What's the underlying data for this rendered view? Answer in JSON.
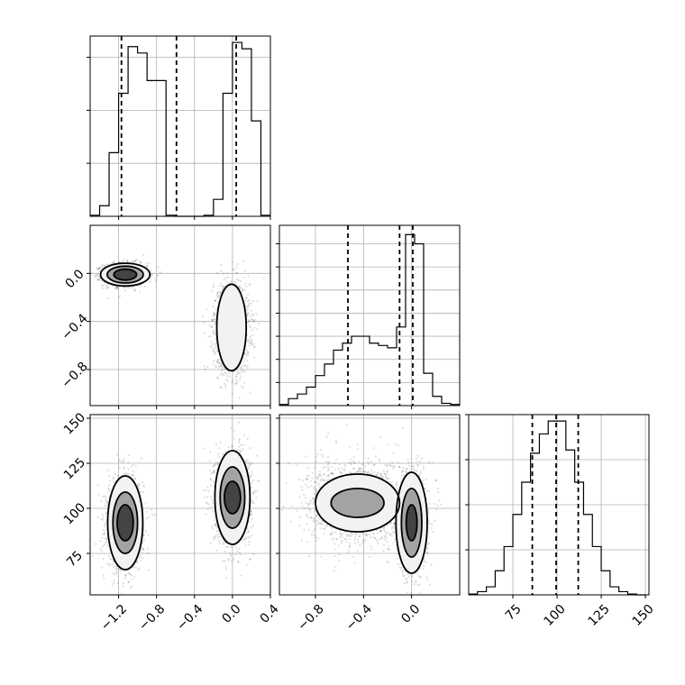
{
  "chart_data": {
    "type": "corner",
    "panels": [
      {
        "id": "hist_p1",
        "type": "histogram",
        "xlim": [
          -1.5,
          0.4
        ],
        "bin_edges": [
          -1.5,
          -1.4,
          -1.3,
          -1.2,
          -1.1,
          -1.0,
          -0.9,
          -0.8,
          -0.7,
          -0.6,
          -0.5,
          -0.4,
          -0.3,
          -0.2,
          -0.1,
          0.0,
          0.1,
          0.2,
          0.3,
          0.4
        ],
        "counts": [
          0.5,
          5,
          30,
          58,
          80,
          77,
          64,
          64,
          0.5,
          0,
          0,
          0,
          0.5,
          8,
          58,
          82,
          79,
          45,
          0.5
        ],
        "ymax": 85,
        "yticks": [
          25,
          50,
          75
        ],
        "quantiles": [
          -1.17,
          -0.59,
          0.04
        ]
      },
      {
        "id": "scatter_p1_p2",
        "type": "2d-hist",
        "xlim": [
          -1.5,
          0.4
        ],
        "ylim": [
          -1.1,
          0.4
        ],
        "yticks": [
          0.0,
          -0.4,
          -0.8
        ],
        "ytick_labels": [
          "0.0",
          "−0.4",
          "−0.8"
        ],
        "clusters": [
          {
            "cx": -1.13,
            "cy": -0.01,
            "sx": 0.11,
            "sy": 0.045,
            "n": 1400
          },
          {
            "cx": -0.01,
            "cy": -0.45,
            "sx": 0.09,
            "sy": 0.18,
            "n": 1400
          }
        ],
        "contours": [
          {
            "cx": -1.13,
            "cy": -0.01,
            "levels": [
              [
                0.26,
                0.095
              ],
              [
                0.19,
                0.07
              ],
              [
                0.12,
                0.045
              ]
            ]
          },
          {
            "cx": -0.01,
            "cy": -0.45,
            "levels": [
              [
                0.155,
                0.36
              ]
            ]
          }
        ]
      },
      {
        "id": "hist_p2",
        "type": "histogram",
        "xlim": [
          -1.1,
          0.4
        ],
        "bin_edges": [
          -1.1,
          -1.025,
          -0.95,
          -0.875,
          -0.8,
          -0.725,
          -0.65,
          -0.575,
          -0.5,
          -0.425,
          -0.35,
          -0.275,
          -0.2,
          -0.125,
          -0.05,
          0.025,
          0.1,
          0.175,
          0.25,
          0.325,
          0.4
        ],
        "counts": [
          0.5,
          3,
          5,
          8,
          13,
          18,
          24,
          27,
          30,
          30,
          27,
          26,
          25,
          34,
          74,
          70,
          14,
          4,
          1,
          0.5
        ],
        "ymax": 78,
        "yticks": [
          10,
          20,
          30,
          40,
          50,
          60,
          70
        ],
        "quantiles": [
          -0.53,
          -0.1,
          0.01
        ]
      },
      {
        "id": "scatter_p1_p3",
        "type": "2d-hist",
        "xlim": [
          -1.5,
          0.4
        ],
        "ylim": [
          52,
          152
        ],
        "yticks": [
          75,
          100,
          125,
          150
        ],
        "ytick_labels": [
          "75",
          "100",
          "125",
          "150"
        ],
        "xticks": [
          -1.2,
          -0.8,
          -0.4,
          0.0,
          0.4
        ],
        "xtick_labels": [
          "−1.2",
          "−0.8",
          "−0.4",
          "0.0",
          "0.4"
        ],
        "clusters": [
          {
            "cx": -1.13,
            "cy": 92,
            "sx": 0.09,
            "sy": 12,
            "n": 1400
          },
          {
            "cx": 0.0,
            "cy": 106,
            "sx": 0.09,
            "sy": 12,
            "n": 1400
          }
        ],
        "contours": [
          {
            "cx": -1.13,
            "cy": 92,
            "levels": [
              [
                0.185,
                26
              ],
              [
                0.13,
                17
              ],
              [
                0.085,
                10
              ]
            ]
          },
          {
            "cx": 0.0,
            "cy": 106,
            "levels": [
              [
                0.185,
                26
              ],
              [
                0.13,
                17
              ],
              [
                0.085,
                9
              ]
            ]
          }
        ]
      },
      {
        "id": "scatter_p2_p3",
        "type": "2d-hist",
        "xlim": [
          -1.1,
          0.4
        ],
        "ylim": [
          52,
          152
        ],
        "xticks": [
          -0.8,
          -0.4,
          0.0
        ],
        "xtick_labels": [
          "−0.8",
          "−0.4",
          "0.0"
        ],
        "clusters": [
          {
            "cx": -0.45,
            "cy": 103,
            "sx": 0.2,
            "sy": 11,
            "n": 1500
          },
          {
            "cx": 0.0,
            "cy": 92,
            "sx": 0.06,
            "sy": 13,
            "n": 1300
          }
        ],
        "contours": [
          {
            "cx": -0.45,
            "cy": 103,
            "levels": [
              [
                0.35,
                16
              ],
              [
                0.22,
                8
              ]
            ]
          },
          {
            "cx": 0.0,
            "cy": 92,
            "levels": [
              [
                0.13,
                28
              ],
              [
                0.085,
                19
              ],
              [
                0.045,
                10
              ]
            ]
          }
        ]
      },
      {
        "id": "hist_p3",
        "type": "histogram",
        "xlim": [
          50,
          152
        ],
        "bin_edges": [
          50,
          55,
          60,
          65,
          70,
          75,
          80,
          85,
          90,
          95,
          100,
          105,
          110,
          115,
          120,
          125,
          130,
          135,
          140,
          145,
          150
        ],
        "counts": [
          0.5,
          2,
          5,
          15,
          30,
          50,
          70,
          88,
          100,
          108,
          108,
          90,
          70,
          50,
          30,
          15,
          5,
          2,
          0.5,
          0
        ],
        "ymax": 112,
        "yticks": [
          100,
          200,
          300
        ],
        "hidden_yscale": true,
        "quantiles": [
          86,
          99.5,
          112
        ],
        "xticks": [
          75,
          100,
          125,
          150
        ],
        "xtick_labels": [
          "75",
          "100",
          "125",
          "150"
        ]
      }
    ]
  }
}
